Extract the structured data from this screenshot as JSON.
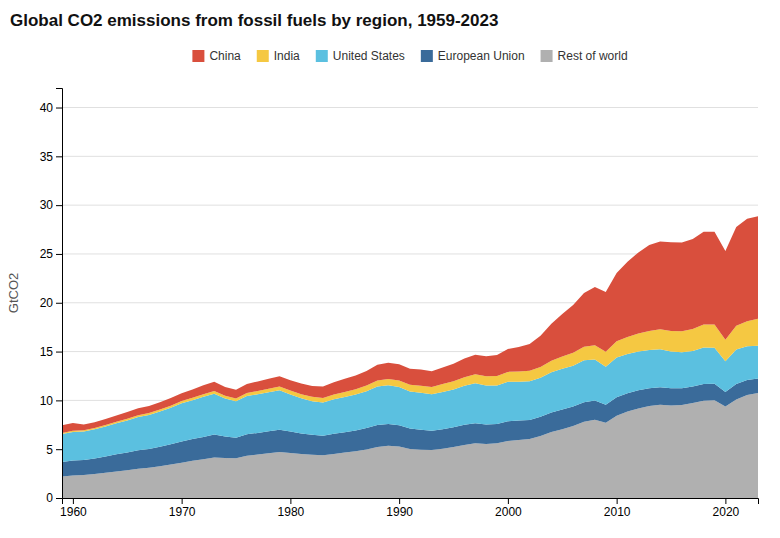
{
  "chart_data": {
    "type": "area",
    "stacked": true,
    "title": "Global CO2 emissions from fossil fuels by region, 1959-2023",
    "ylabel": "GtCO2",
    "x": [
      1959,
      1960,
      1961,
      1962,
      1963,
      1964,
      1965,
      1966,
      1967,
      1968,
      1969,
      1970,
      1971,
      1972,
      1973,
      1974,
      1975,
      1976,
      1977,
      1978,
      1979,
      1980,
      1981,
      1982,
      1983,
      1984,
      1985,
      1986,
      1987,
      1988,
      1989,
      1990,
      1991,
      1992,
      1993,
      1994,
      1995,
      1996,
      1997,
      1998,
      1999,
      2000,
      2001,
      2002,
      2003,
      2004,
      2005,
      2006,
      2007,
      2008,
      2009,
      2010,
      2011,
      2012,
      2013,
      2014,
      2015,
      2016,
      2017,
      2018,
      2019,
      2020,
      2021,
      2022,
      2023
    ],
    "series": [
      {
        "name": "Rest of world",
        "color": "#b0b0b0",
        "values": [
          2.2,
          2.3,
          2.35,
          2.45,
          2.58,
          2.72,
          2.85,
          3.0,
          3.1,
          3.25,
          3.42,
          3.62,
          3.82,
          3.98,
          4.15,
          4.1,
          4.08,
          4.32,
          4.45,
          4.58,
          4.7,
          4.62,
          4.5,
          4.42,
          4.38,
          4.52,
          4.65,
          4.8,
          4.98,
          5.22,
          5.35,
          5.28,
          5.02,
          4.95,
          4.92,
          5.05,
          5.22,
          5.42,
          5.6,
          5.52,
          5.6,
          5.85,
          5.95,
          6.05,
          6.35,
          6.75,
          7.05,
          7.38,
          7.8,
          8.02,
          7.72,
          8.42,
          8.85,
          9.18,
          9.42,
          9.55,
          9.48,
          9.52,
          9.72,
          9.95,
          10.02,
          9.38,
          10.1,
          10.55,
          10.75
        ]
      },
      {
        "name": "European Union",
        "color": "#3a6b9a",
        "values": [
          1.5,
          1.55,
          1.55,
          1.6,
          1.67,
          1.75,
          1.82,
          1.9,
          1.93,
          2.0,
          2.08,
          2.18,
          2.22,
          2.28,
          2.35,
          2.2,
          2.1,
          2.2,
          2.22,
          2.25,
          2.28,
          2.2,
          2.1,
          2.05,
          2.0,
          2.05,
          2.08,
          2.12,
          2.18,
          2.25,
          2.22,
          2.18,
          2.1,
          2.05,
          1.98,
          2.0,
          2.02,
          2.08,
          2.05,
          2.0,
          1.98,
          2.0,
          1.98,
          1.95,
          1.98,
          2.0,
          2.02,
          2.0,
          2.0,
          1.98,
          1.82,
          1.9,
          1.88,
          1.85,
          1.82,
          1.8,
          1.75,
          1.72,
          1.7,
          1.72,
          1.68,
          1.48,
          1.58,
          1.55,
          1.5
        ]
      },
      {
        "name": "United States",
        "color": "#5bc0e0",
        "values": [
          2.85,
          2.92,
          2.9,
          2.98,
          3.08,
          3.18,
          3.28,
          3.4,
          3.48,
          3.62,
          3.75,
          3.9,
          3.98,
          4.12,
          4.18,
          3.88,
          3.72,
          3.92,
          3.95,
          4.0,
          4.05,
          3.78,
          3.62,
          3.45,
          3.4,
          3.55,
          3.62,
          3.68,
          3.78,
          3.95,
          3.98,
          3.9,
          3.78,
          3.78,
          3.72,
          3.82,
          3.88,
          4.0,
          4.1,
          4.0,
          3.95,
          4.05,
          3.98,
          3.95,
          3.98,
          4.12,
          4.18,
          4.18,
          4.3,
          4.18,
          3.9,
          4.08,
          4.02,
          3.98,
          3.92,
          3.88,
          3.78,
          3.68,
          3.65,
          3.75,
          3.68,
          3.15,
          3.52,
          3.45,
          3.35
        ]
      },
      {
        "name": "India",
        "color": "#f5c842",
        "values": [
          0.12,
          0.13,
          0.14,
          0.14,
          0.15,
          0.16,
          0.17,
          0.18,
          0.19,
          0.2,
          0.21,
          0.23,
          0.25,
          0.26,
          0.28,
          0.29,
          0.3,
          0.32,
          0.34,
          0.36,
          0.38,
          0.4,
          0.42,
          0.44,
          0.46,
          0.49,
          0.52,
          0.55,
          0.58,
          0.62,
          0.65,
          0.68,
          0.7,
          0.73,
          0.76,
          0.8,
          0.84,
          0.88,
          0.92,
          0.95,
          0.98,
          1.02,
          1.05,
          1.08,
          1.12,
          1.18,
          1.25,
          1.32,
          1.4,
          1.48,
          1.55,
          1.65,
          1.75,
          1.85,
          1.95,
          2.05,
          2.1,
          2.15,
          2.25,
          2.35,
          2.4,
          2.2,
          2.45,
          2.55,
          2.75
        ]
      },
      {
        "name": "China",
        "color": "#d94f3d",
        "values": [
          0.78,
          0.78,
          0.6,
          0.58,
          0.6,
          0.65,
          0.68,
          0.72,
          0.72,
          0.75,
          0.78,
          0.8,
          0.85,
          0.9,
          0.95,
          0.9,
          0.88,
          0.92,
          0.98,
          1.02,
          1.05,
          1.05,
          1.08,
          1.12,
          1.18,
          1.25,
          1.35,
          1.4,
          1.5,
          1.62,
          1.65,
          1.65,
          1.65,
          1.65,
          1.6,
          1.7,
          1.8,
          1.9,
          2.0,
          2.05,
          2.15,
          2.35,
          2.5,
          2.75,
          3.2,
          3.8,
          4.35,
          4.9,
          5.5,
          5.95,
          6.1,
          7.0,
          7.7,
          8.3,
          8.8,
          9.0,
          9.1,
          9.1,
          9.2,
          9.5,
          9.5,
          9.1,
          10.1,
          10.5,
          10.5
        ]
      }
    ],
    "xlim": [
      1959,
      2023
    ],
    "ylim": [
      0,
      42
    ],
    "xticks": [
      1960,
      1970,
      1980,
      1990,
      2000,
      2010,
      2020
    ],
    "yticks": [
      0,
      5,
      10,
      15,
      20,
      25,
      30,
      35,
      40
    ],
    "grid": "y",
    "legend": "top"
  }
}
